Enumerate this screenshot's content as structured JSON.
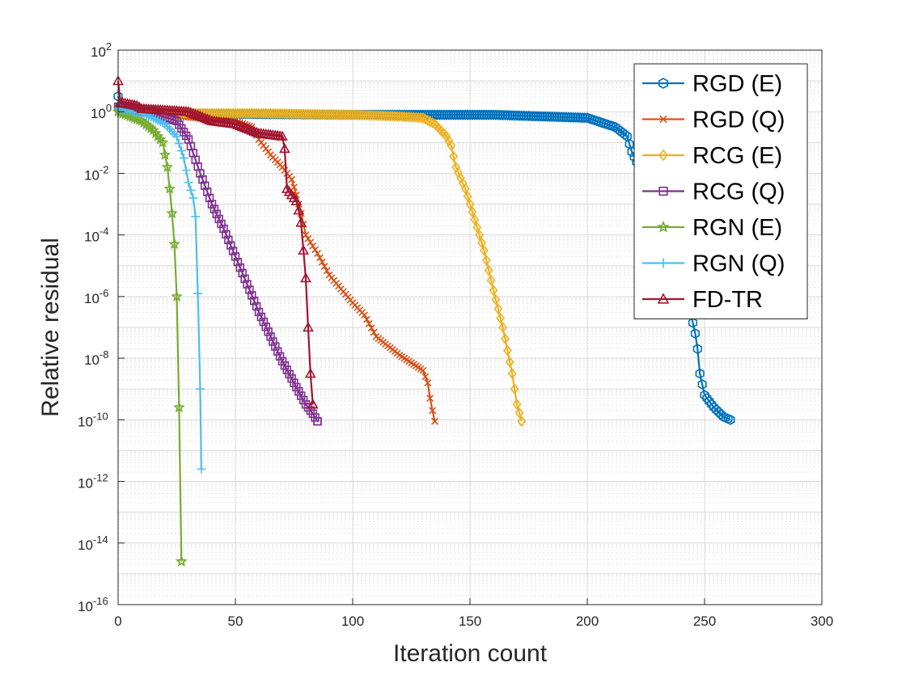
{
  "chart_data": {
    "type": "line",
    "title": "",
    "xlabel": "Iteration count",
    "ylabel": "Relative residual",
    "xlim": [
      0,
      300
    ],
    "ylim_log10": [
      -16,
      2
    ],
    "yscale": "log",
    "grid": true,
    "legend_position": "top-right",
    "x_ticks": [
      0,
      50,
      100,
      150,
      200,
      250,
      300
    ],
    "y_tick_exponents": [
      2,
      0,
      -2,
      -4,
      -6,
      -8,
      -10,
      -12,
      -14,
      -16
    ],
    "y_tick_base": "10",
    "series": [
      {
        "name": "RGD (E)",
        "color": "#0072BD",
        "marker": "hexagon",
        "points_log10": [
          [
            0,
            0.5
          ],
          [
            1,
            0.2
          ],
          [
            20,
            -0.05
          ],
          [
            100,
            -0.1
          ],
          [
            160,
            -0.1
          ],
          [
            200,
            -0.2
          ],
          [
            212,
            -0.5
          ],
          [
            217,
            -0.8
          ],
          [
            219,
            -1.3
          ],
          [
            222,
            -1.8
          ],
          [
            225,
            -2.5
          ],
          [
            230,
            -3.5
          ],
          [
            235,
            -4.5
          ],
          [
            240,
            -5.5
          ],
          [
            244,
            -6.5
          ],
          [
            246,
            -7.2
          ],
          [
            247,
            -7.7
          ],
          [
            248,
            -8.5
          ],
          [
            250,
            -9.2
          ],
          [
            254,
            -9.6
          ],
          [
            258,
            -9.9
          ],
          [
            261,
            -10.0
          ]
        ]
      },
      {
        "name": "RGD (Q)",
        "color": "#D95319",
        "marker": "cross",
        "points_log10": [
          [
            0,
            0.2
          ],
          [
            8,
            0.0
          ],
          [
            20,
            -0.1
          ],
          [
            40,
            -0.25
          ],
          [
            50,
            -0.3
          ],
          [
            57,
            -0.5
          ],
          [
            60,
            -0.9
          ],
          [
            65,
            -1.4
          ],
          [
            70,
            -1.8
          ],
          [
            74,
            -2.2
          ],
          [
            76,
            -2.7
          ],
          [
            78,
            -3.3
          ],
          [
            80,
            -4.0
          ],
          [
            85,
            -4.6
          ],
          [
            90,
            -5.3
          ],
          [
            100,
            -6.2
          ],
          [
            105,
            -6.6
          ],
          [
            110,
            -7.3
          ],
          [
            120,
            -7.9
          ],
          [
            130,
            -8.4
          ],
          [
            132,
            -8.8
          ],
          [
            133,
            -9.3
          ],
          [
            134,
            -9.7
          ],
          [
            135,
            -10.05
          ]
        ]
      },
      {
        "name": "RCG (E)",
        "color": "#EDB120",
        "marker": "diamond",
        "points_log10": [
          [
            0,
            0.15
          ],
          [
            3,
            0.0
          ],
          [
            20,
            -0.05
          ],
          [
            60,
            -0.05
          ],
          [
            100,
            -0.1
          ],
          [
            120,
            -0.15
          ],
          [
            130,
            -0.2
          ],
          [
            135,
            -0.4
          ],
          [
            140,
            -0.8
          ],
          [
            142,
            -1.1
          ],
          [
            144,
            -1.8
          ],
          [
            148,
            -2.5
          ],
          [
            152,
            -3.5
          ],
          [
            156,
            -4.5
          ],
          [
            160,
            -5.8
          ],
          [
            164,
            -7.0
          ],
          [
            168,
            -8.5
          ],
          [
            170,
            -9.5
          ],
          [
            172,
            -10.05
          ]
        ]
      },
      {
        "name": "RCG (Q)",
        "color": "#7E2F8E",
        "marker": "square",
        "points_log10": [
          [
            0,
            0.15
          ],
          [
            5,
            0.1
          ],
          [
            15,
            -0.05
          ],
          [
            25,
            -0.3
          ],
          [
            30,
            -0.9
          ],
          [
            35,
            -2.0
          ],
          [
            40,
            -3.0
          ],
          [
            45,
            -3.8
          ],
          [
            50,
            -4.7
          ],
          [
            55,
            -5.6
          ],
          [
            60,
            -6.5
          ],
          [
            65,
            -7.3
          ],
          [
            70,
            -8.1
          ],
          [
            75,
            -8.8
          ],
          [
            80,
            -9.5
          ],
          [
            83,
            -9.8
          ],
          [
            85,
            -10.05
          ]
        ]
      },
      {
        "name": "RGN (E)",
        "color": "#77AC30",
        "marker": "pentagram",
        "points_log10": [
          [
            0,
            0.0
          ],
          [
            10,
            -0.3
          ],
          [
            15,
            -0.6
          ],
          [
            19,
            -1.0
          ],
          [
            21,
            -1.8
          ],
          [
            22,
            -2.5
          ],
          [
            23,
            -3.3
          ],
          [
            24,
            -4.3
          ],
          [
            25,
            -6.0
          ],
          [
            26,
            -9.6
          ],
          [
            27,
            -14.6
          ]
        ]
      },
      {
        "name": "RGN (Q)",
        "color": "#4DBEEE",
        "marker": "plus",
        "points_log10": [
          [
            0,
            0.1
          ],
          [
            12,
            -0.1
          ],
          [
            20,
            -0.4
          ],
          [
            25,
            -0.8
          ],
          [
            28,
            -1.5
          ],
          [
            30,
            -2.3
          ],
          [
            32,
            -2.8
          ],
          [
            33,
            -3.4
          ],
          [
            34,
            -5.9
          ],
          [
            35,
            -9.0
          ],
          [
            35.5,
            -11.6
          ]
        ]
      },
      {
        "name": "FD-TR",
        "color": "#A2142F",
        "marker": "triangle",
        "points_log10": [
          [
            0,
            1.0
          ],
          [
            1,
            0.3
          ],
          [
            8,
            0.2
          ],
          [
            10,
            0.1
          ],
          [
            30,
            0.0
          ],
          [
            40,
            -0.3
          ],
          [
            50,
            -0.4
          ],
          [
            60,
            -0.7
          ],
          [
            65,
            -0.75
          ],
          [
            70,
            -0.8
          ],
          [
            71,
            -1.2
          ],
          [
            72,
            -2.5
          ],
          [
            75,
            -2.8
          ],
          [
            76,
            -2.9
          ],
          [
            77,
            -3.2
          ],
          [
            78,
            -3.6
          ],
          [
            79,
            -4.5
          ],
          [
            80,
            -5.4
          ],
          [
            81,
            -7.0
          ],
          [
            82,
            -8.5
          ],
          [
            83,
            -9.5
          ]
        ]
      }
    ]
  }
}
